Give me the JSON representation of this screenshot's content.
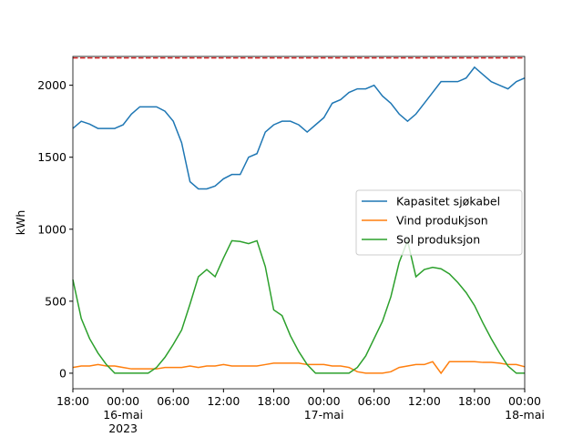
{
  "chart_data": {
    "type": "line",
    "y_label": "kWh",
    "x": [
      0,
      1,
      2,
      3,
      4,
      5,
      6,
      7,
      8,
      9,
      10,
      11,
      12,
      13,
      14,
      15,
      16,
      17,
      18,
      19,
      20,
      21,
      22,
      23,
      24,
      25,
      26,
      27,
      28,
      29,
      30,
      31,
      32,
      33,
      34,
      35,
      36,
      37,
      38,
      39,
      40,
      41,
      42,
      43,
      44,
      45,
      46,
      47,
      48,
      49,
      50,
      51,
      52,
      53,
      54
    ],
    "xlim": [
      0,
      54
    ],
    "xticks": [
      {
        "value": 0,
        "label": "18:00"
      },
      {
        "value": 6,
        "label": "00:00\n16-mai\n2023"
      },
      {
        "value": 12,
        "label": "06:00"
      },
      {
        "value": 18,
        "label": "12:00"
      },
      {
        "value": 24,
        "label": "18:00"
      },
      {
        "value": 30,
        "label": "00:00\n17-mai"
      },
      {
        "value": 36,
        "label": "06:00"
      },
      {
        "value": 42,
        "label": "12:00"
      },
      {
        "value": 48,
        "label": "18:00"
      },
      {
        "value": 54,
        "label": "00:00\n18-mai"
      }
    ],
    "ylim": [
      -108,
      2200
    ],
    "yticks": [
      0,
      500,
      1000,
      1500,
      2000
    ],
    "legend": "center right",
    "hlines": [
      {
        "value": 2190,
        "color": "#d62728"
      }
    ],
    "series": [
      {
        "name": "Kapasitet sjøkabel",
        "color": "#1f77b4",
        "values": [
          1700,
          1750,
          1730,
          1700,
          1700,
          1700,
          1725,
          1800,
          1850,
          1850,
          1850,
          1820,
          1750,
          1600,
          1330,
          1280,
          1280,
          1300,
          1350,
          1380,
          1380,
          1500,
          1525,
          1675,
          1725,
          1750,
          1750,
          1725,
          1675,
          1725,
          1775,
          1875,
          1900,
          1950,
          1975,
          1975,
          2000,
          1925,
          1875,
          1800,
          1750,
          1800,
          1875,
          1950,
          2025,
          2025,
          2025,
          2050,
          2125,
          2075,
          2025,
          2000,
          1975,
          2025,
          2050
        ]
      },
      {
        "name": "Vind produkjson",
        "color": "#ff7f0e",
        "values": [
          40,
          50,
          50,
          60,
          50,
          50,
          40,
          30,
          30,
          30,
          30,
          40,
          40,
          40,
          50,
          40,
          50,
          50,
          60,
          50,
          50,
          50,
          50,
          60,
          70,
          70,
          70,
          70,
          60,
          60,
          60,
          50,
          50,
          40,
          10,
          0,
          0,
          0,
          10,
          40,
          50,
          60,
          60,
          80,
          0,
          80,
          80,
          80,
          80,
          75,
          75,
          70,
          60,
          60,
          45
        ]
      },
      {
        "name": "Sol produksjon",
        "color": "#2ca02c",
        "values": [
          650,
          380,
          240,
          140,
          60,
          0,
          0,
          0,
          0,
          0,
          40,
          110,
          200,
          300,
          480,
          670,
          720,
          670,
          800,
          920,
          915,
          900,
          920,
          740,
          440,
          400,
          260,
          150,
          60,
          0,
          0,
          0,
          0,
          0,
          40,
          120,
          240,
          360,
          530,
          770,
          920,
          670,
          720,
          735,
          725,
          690,
          630,
          560,
          470,
          350,
          240,
          140,
          50,
          0,
          0
        ]
      }
    ]
  }
}
